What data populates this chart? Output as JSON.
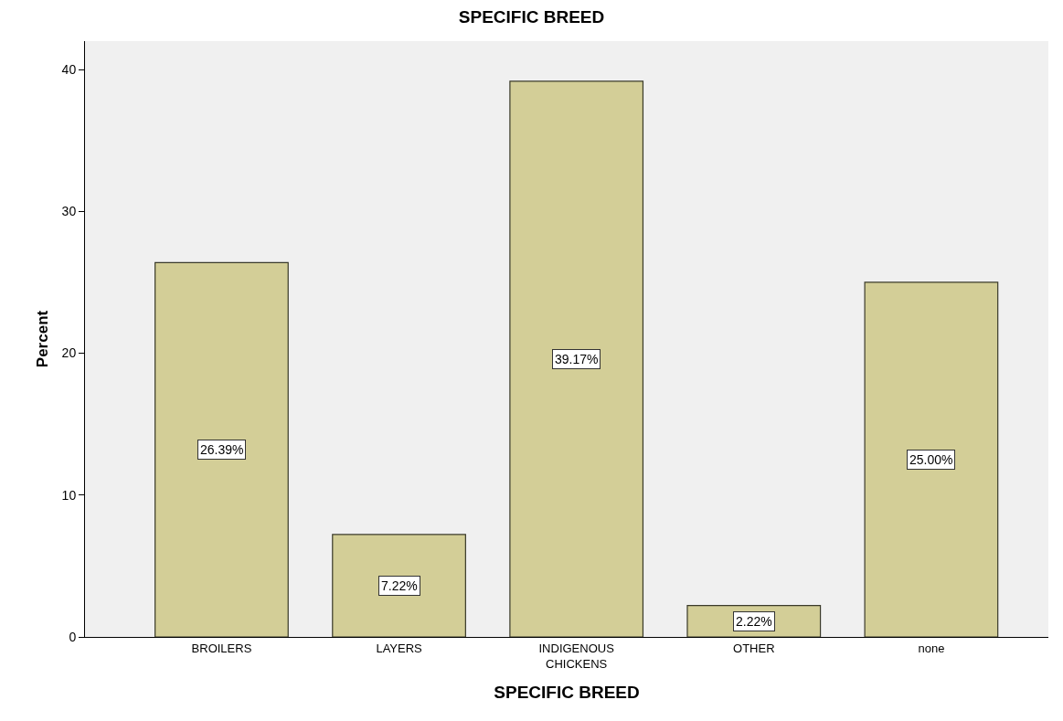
{
  "chart_data": {
    "type": "bar",
    "title": "SPECIFIC BREED",
    "xlabel": "SPECIFIC BREED",
    "ylabel": "Percent",
    "categories": [
      "BROILERS",
      "LAYERS",
      "INDIGENOUS CHICKENS",
      "OTHER",
      "none"
    ],
    "values": [
      26.39,
      7.22,
      39.17,
      2.22,
      25.0
    ],
    "value_labels": [
      "26.39%",
      "7.22%",
      "39.17%",
      "2.22%",
      "25.00%"
    ],
    "color": "#d3ce97",
    "ylim": [
      0,
      42
    ],
    "yticks": [
      0,
      10,
      20,
      30,
      40
    ],
    "grid": false
  }
}
